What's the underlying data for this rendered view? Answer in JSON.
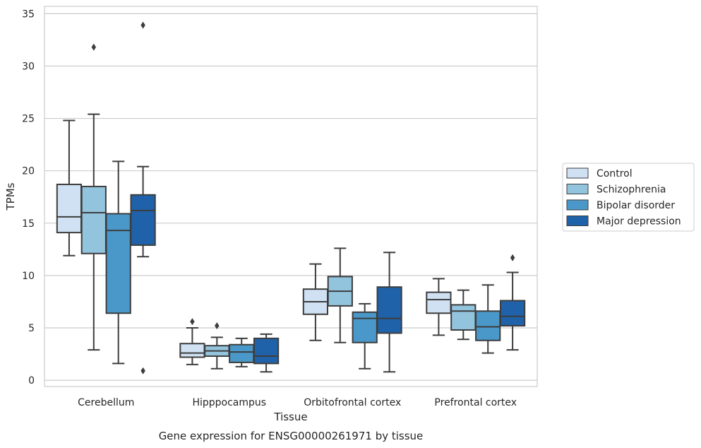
{
  "chart_data": {
    "type": "box",
    "title": "",
    "caption": "Gene expression for ENSG00000261971 by tissue",
    "xlabel": "Tissue",
    "ylabel": "TPMs",
    "ylim": [
      -0.6,
      35.7
    ],
    "yticks": [
      "0",
      "5",
      "10",
      "15",
      "20",
      "25",
      "30",
      "35"
    ],
    "grid": "horizontal",
    "legend_position": "right",
    "categories": [
      "Cerebellum",
      "Hipppocampus",
      "Orbitofrontal cortex",
      "Prefrontal cortex"
    ],
    "series": [
      {
        "name": "Control",
        "color": "#cfe1f2",
        "boxes": [
          {
            "whisker_low": 11.9,
            "q1": 14.1,
            "median": 15.6,
            "q3": 18.7,
            "whisker_high": 24.8,
            "outliers": []
          },
          {
            "whisker_low": 1.5,
            "q1": 2.2,
            "median": 2.6,
            "q3": 3.5,
            "whisker_high": 5.0,
            "outliers": [
              5.6
            ]
          },
          {
            "whisker_low": 3.8,
            "q1": 6.3,
            "median": 7.5,
            "q3": 8.7,
            "whisker_high": 11.1,
            "outliers": []
          },
          {
            "whisker_low": 4.3,
            "q1": 6.4,
            "median": 7.7,
            "q3": 8.4,
            "whisker_high": 9.7,
            "outliers": []
          }
        ]
      },
      {
        "name": "Schizophrenia",
        "color": "#93c4de",
        "boxes": [
          {
            "whisker_low": 2.9,
            "q1": 12.1,
            "median": 16.0,
            "q3": 18.5,
            "whisker_high": 25.4,
            "outliers": [
              31.8
            ]
          },
          {
            "whisker_low": 1.1,
            "q1": 2.3,
            "median": 2.8,
            "q3": 3.3,
            "whisker_high": 4.1,
            "outliers": [
              5.2
            ]
          },
          {
            "whisker_low": 3.6,
            "q1": 7.1,
            "median": 8.5,
            "q3": 9.9,
            "whisker_high": 12.6,
            "outliers": []
          },
          {
            "whisker_low": 3.9,
            "q1": 4.8,
            "median": 6.6,
            "q3": 7.2,
            "whisker_high": 8.6,
            "outliers": []
          }
        ]
      },
      {
        "name": "Bipolar disorder",
        "color": "#4a98c9",
        "boxes": [
          {
            "whisker_low": 1.6,
            "q1": 6.4,
            "median": 14.3,
            "q3": 15.9,
            "whisker_high": 20.9,
            "outliers": []
          },
          {
            "whisker_low": 1.3,
            "q1": 1.7,
            "median": 2.7,
            "q3": 3.4,
            "whisker_high": 4.0,
            "outliers": []
          },
          {
            "whisker_low": 1.1,
            "q1": 3.6,
            "median": 5.9,
            "q3": 6.5,
            "whisker_high": 7.3,
            "outliers": []
          },
          {
            "whisker_low": 2.6,
            "q1": 3.8,
            "median": 5.1,
            "q3": 6.6,
            "whisker_high": 9.1,
            "outliers": []
          }
        ]
      },
      {
        "name": "Major depression",
        "color": "#1f62a9",
        "boxes": [
          {
            "whisker_low": 11.8,
            "q1": 12.9,
            "median": 16.2,
            "q3": 17.7,
            "whisker_high": 20.4,
            "outliers": [
              0.9,
              33.9
            ]
          },
          {
            "whisker_low": 0.8,
            "q1": 1.6,
            "median": 2.3,
            "q3": 4.0,
            "whisker_high": 4.4,
            "outliers": []
          },
          {
            "whisker_low": 0.8,
            "q1": 4.5,
            "median": 5.9,
            "q3": 8.9,
            "whisker_high": 12.2,
            "outliers": []
          },
          {
            "whisker_low": 2.9,
            "q1": 5.2,
            "median": 6.1,
            "q3": 7.6,
            "whisker_high": 10.3,
            "outliers": [
              11.7
            ]
          }
        ]
      }
    ]
  }
}
